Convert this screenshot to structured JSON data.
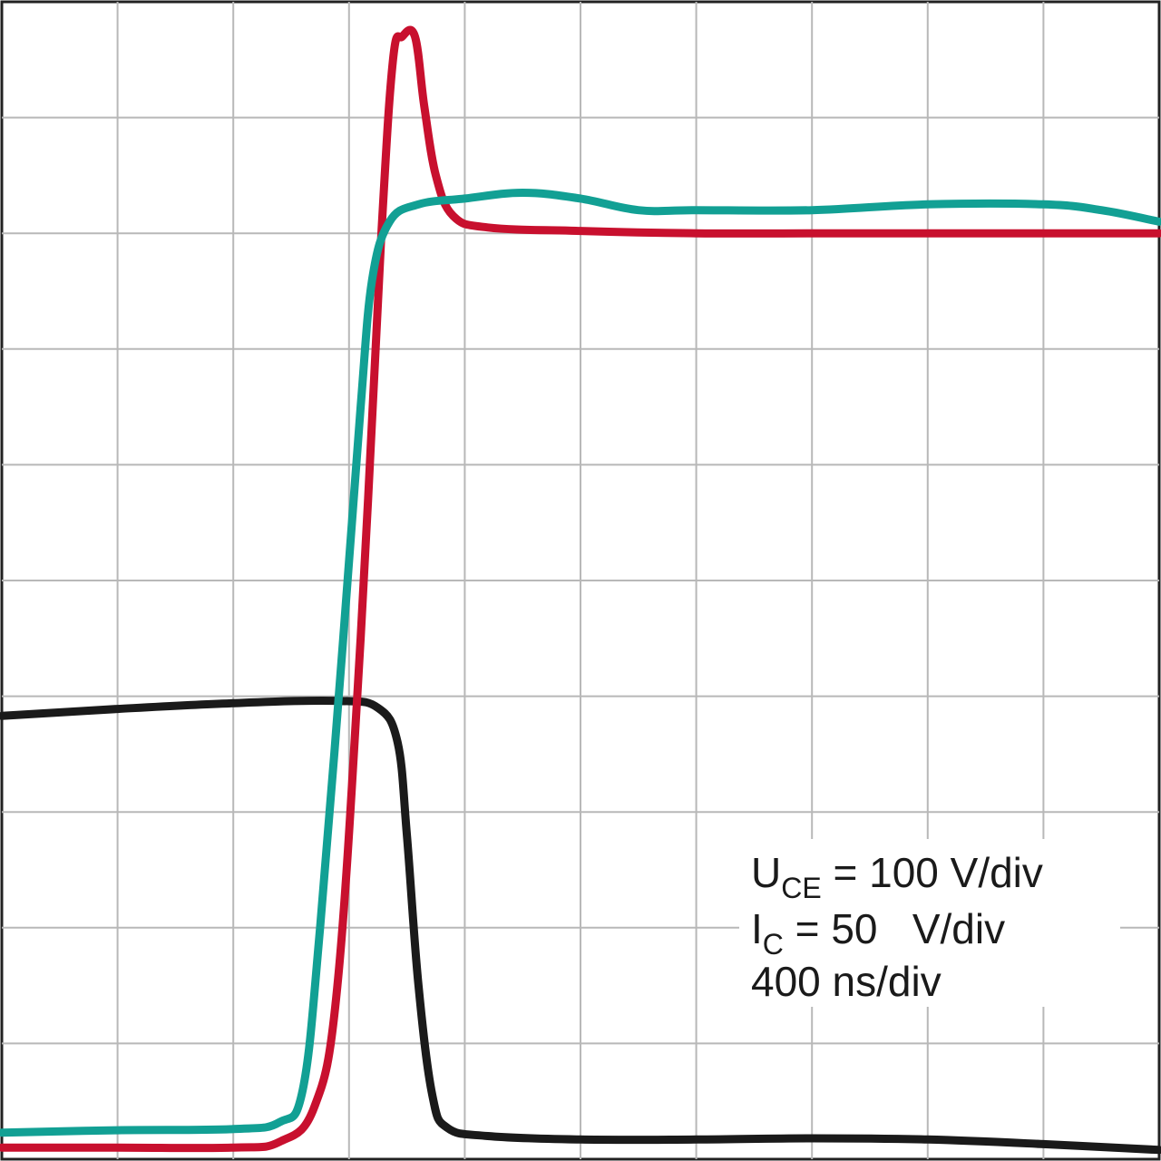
{
  "chart_data": {
    "type": "line",
    "grid": true,
    "xlim": [
      0,
      10
    ],
    "ylim": [
      0,
      10
    ],
    "series": [
      {
        "color": "#1a1a1a",
        "points": [
          [
            0,
            3.83
          ],
          [
            1,
            3.89
          ],
          [
            2,
            3.94
          ],
          [
            2.9,
            3.96
          ],
          [
            3.25,
            3.9
          ],
          [
            3.42,
            3.6
          ],
          [
            3.5,
            2.8
          ],
          [
            3.6,
            1.5
          ],
          [
            3.72,
            0.55
          ],
          [
            3.85,
            0.27
          ],
          [
            4.2,
            0.2
          ],
          [
            5,
            0.17
          ],
          [
            6,
            0.17
          ],
          [
            7,
            0.18
          ],
          [
            8,
            0.17
          ],
          [
            9,
            0.13
          ],
          [
            10,
            0.08
          ]
        ]
      },
      {
        "color": "#c8102e",
        "points": [
          [
            0,
            0.1
          ],
          [
            1,
            0.1
          ],
          [
            2,
            0.1
          ],
          [
            2.4,
            0.15
          ],
          [
            2.7,
            0.45
          ],
          [
            2.9,
            1.5
          ],
          [
            3.1,
            4.5
          ],
          [
            3.28,
            8.0
          ],
          [
            3.38,
            9.5
          ],
          [
            3.46,
            9.7
          ],
          [
            3.57,
            9.7
          ],
          [
            3.65,
            9.1
          ],
          [
            3.75,
            8.5
          ],
          [
            3.9,
            8.15
          ],
          [
            4.2,
            8.05
          ],
          [
            5,
            8.02
          ],
          [
            6,
            8.0
          ],
          [
            7,
            8.0
          ],
          [
            8,
            8.0
          ],
          [
            9,
            8.0
          ],
          [
            10,
            8.0
          ]
        ]
      },
      {
        "color": "#12a094",
        "points": [
          [
            0,
            0.23
          ],
          [
            1,
            0.25
          ],
          [
            2,
            0.26
          ],
          [
            2.4,
            0.32
          ],
          [
            2.6,
            0.6
          ],
          [
            2.75,
            2.0
          ],
          [
            2.95,
            4.5
          ],
          [
            3.1,
            6.5
          ],
          [
            3.2,
            7.6
          ],
          [
            3.35,
            8.1
          ],
          [
            3.6,
            8.25
          ],
          [
            4.0,
            8.3
          ],
          [
            4.5,
            8.35
          ],
          [
            5.0,
            8.3
          ],
          [
            5.5,
            8.2
          ],
          [
            6.0,
            8.2
          ],
          [
            7.0,
            8.2
          ],
          [
            8.0,
            8.25
          ],
          [
            9.0,
            8.25
          ],
          [
            9.5,
            8.2
          ],
          [
            10,
            8.1
          ]
        ]
      }
    ]
  },
  "legend": {
    "line1": {
      "symbol": "U",
      "sub": "CE",
      "rest": " = 100 V/div"
    },
    "line2": {
      "symbol": "I",
      "sub": "C",
      "rest": " = 50   V/div"
    },
    "line3": {
      "text": "400 ns/div"
    }
  }
}
